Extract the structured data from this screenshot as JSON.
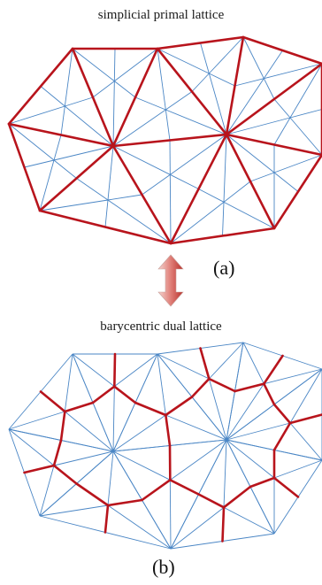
{
  "top_panel": {
    "title": "simplicial primal lattice",
    "label": "(a)"
  },
  "bottom_panel": {
    "title": "barycentric dual lattice",
    "label": "(b)"
  },
  "colors": {
    "fine_lattice": "#4a86c5",
    "highlight": "#b8141c",
    "arrow_light": "#f2c7c2",
    "arrow_dark": "#c8443f"
  }
}
